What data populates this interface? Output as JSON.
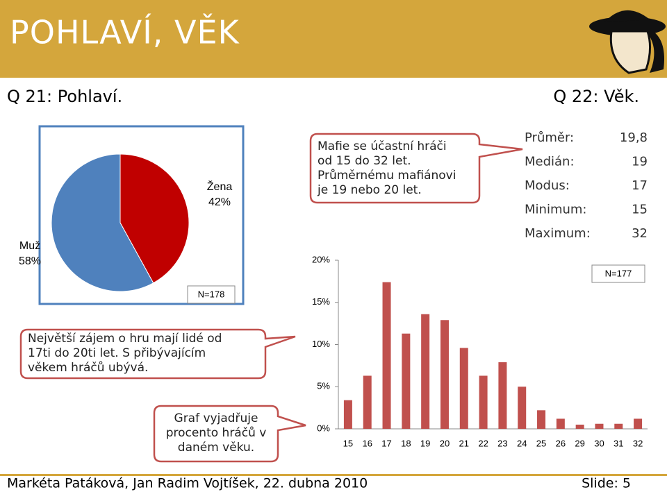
{
  "header": {
    "title": "POHLAVÍ, VĚK"
  },
  "questions": [
    "Q 21: Pohlaví.",
    "Q 22: Věk."
  ],
  "callouts": [
    {
      "lines": [
        "Mafie se účastní hráči",
        "od 15 do 32 let.",
        "Průměrnému mafiánovi",
        "je 19 nebo 20 let."
      ]
    },
    {
      "lines": [
        "Největší zájem o hru mají lidé od",
        "17ti do 20ti let. S přibývajícím",
        "věkem hráčů ubývá."
      ]
    },
    {
      "lines": [
        "Graf vyjadřuje",
        "procento hráčů v",
        "daném věku."
      ]
    }
  ],
  "stats": [
    [
      "Průměr:",
      "19,8"
    ],
    [
      "Medián:",
      "19"
    ],
    [
      "Modus:",
      "17"
    ],
    [
      "Minimum:",
      "15"
    ],
    [
      "Maximum:",
      "32"
    ]
  ],
  "chart_data": [
    {
      "type": "pie",
      "categories": [
        "Žena",
        "Muž"
      ],
      "values": [
        42,
        58
      ],
      "value_labels": [
        "42%",
        "58%"
      ],
      "colors": [
        "#c00000",
        "#4f81bd"
      ],
      "annotation": "N=178"
    },
    {
      "type": "bar",
      "categories": [
        "15",
        "16",
        "17",
        "18",
        "19",
        "20",
        "21",
        "22",
        "23",
        "24",
        "25",
        "26",
        "29",
        "30",
        "31",
        "32"
      ],
      "values": [
        3.4,
        6.3,
        17.4,
        11.3,
        13.6,
        12.9,
        9.6,
        6.3,
        7.9,
        5.0,
        2.2,
        1.2,
        0.5,
        0.6,
        0.6,
        1.2
      ],
      "color": "#c0504d",
      "ylim": [
        0,
        20
      ],
      "yticks": [
        {
          "value": 0,
          "label": "0%"
        },
        {
          "value": 5,
          "label": "5%"
        },
        {
          "value": 10,
          "label": "10%"
        },
        {
          "value": 15,
          "label": "15%"
        },
        {
          "value": 20,
          "label": "20%"
        }
      ],
      "annotation": "N=177"
    }
  ],
  "footer": {
    "authors": "Markéta Patáková, Jan Radim Vojtíšek, 22. dubna 2010",
    "slide": "Slide: 5"
  }
}
